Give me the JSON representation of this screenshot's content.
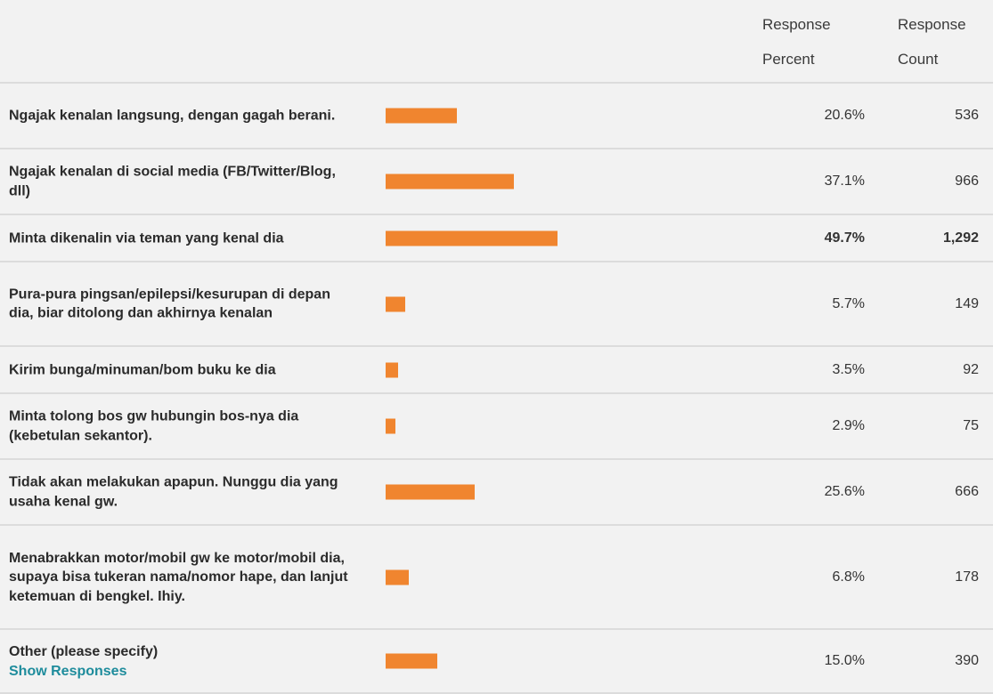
{
  "header": {
    "percent_line1": "Response",
    "percent_line2": "Percent",
    "count_line1": "Response",
    "count_line2": "Count"
  },
  "colors": {
    "bar": "#f0852f",
    "link": "#1e8c9c",
    "background": "#f2f2f2",
    "divider": "#dcdcdc"
  },
  "chart_data": {
    "type": "bar",
    "orientation": "horizontal",
    "categories": [
      "Ngajak kenalan langsung, dengan gagah berani.",
      "Ngajak kenalan di social media (FB/Twitter/Blog, dll)",
      "Minta dikenalin via teman yang kenal dia",
      "Pura-pura pingsan/epilepsi/kesurupan di depan dia, biar ditolong dan akhirnya kenalan",
      "Kirim bunga/minuman/bom buku ke dia",
      "Minta tolong bos gw hubungin bos-nya dia (kebetulan sekantor).",
      "Tidak akan melakukan apapun. Nunggu dia yang usaha kenal gw.",
      "Menabrakkan motor/mobil gw ke motor/mobil dia, supaya bisa tukeran nama/nomor hape, dan lanjut ketemuan di bengkel. Ihiy.",
      "Other (please specify)"
    ],
    "values": [
      20.6,
      37.1,
      49.7,
      5.7,
      3.5,
      2.9,
      25.6,
      6.8,
      15.0
    ],
    "percent_labels": [
      "20.6%",
      "37.1%",
      "49.7%",
      "5.7%",
      "3.5%",
      "2.9%",
      "25.6%",
      "6.8%",
      "15.0%"
    ],
    "counts": [
      "536",
      "966",
      "1,292",
      "149",
      "92",
      "75",
      "666",
      "178",
      "390"
    ],
    "highlight_index": 2,
    "xlim": [
      0,
      100
    ]
  },
  "other_link": "Show Responses"
}
